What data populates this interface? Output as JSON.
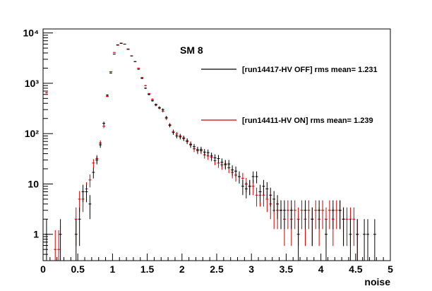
{
  "chart_data": {
    "type": "scatter",
    "title": "SM 8",
    "xlabel": "noise",
    "ylabel": "",
    "xlim": [
      0,
      5
    ],
    "ylim": [
      0.3,
      12000
    ],
    "y_scale": "log",
    "grid": false,
    "legend_position": "top-right",
    "x_ticks": [
      "0",
      "0.5",
      "1",
      "1.5",
      "2",
      "2.5",
      "3",
      "3.5",
      "4",
      "4.5",
      "5"
    ],
    "y_ticks": [
      {
        "value": 1,
        "label": "1"
      },
      {
        "value": 10,
        "label": "10"
      },
      {
        "value": 100,
        "label": "10²"
      },
      {
        "value": 1000,
        "label": "10³"
      },
      {
        "value": 10000,
        "label": "10⁴"
      }
    ],
    "bin_width": 0.05,
    "series": [
      {
        "name": "[run14417-HV OFF] rms mean= 1.231",
        "color": "#000000",
        "x": [
          0.05,
          0.25,
          0.475,
          0.525,
          0.575,
          0.625,
          0.675,
          0.725,
          0.775,
          0.825,
          0.875,
          0.925,
          0.975,
          1.025,
          1.075,
          1.125,
          1.175,
          1.225,
          1.275,
          1.325,
          1.375,
          1.425,
          1.475,
          1.525,
          1.575,
          1.625,
          1.675,
          1.725,
          1.775,
          1.825,
          1.875,
          1.925,
          1.975,
          2.025,
          2.075,
          2.125,
          2.175,
          2.225,
          2.275,
          2.325,
          2.375,
          2.425,
          2.475,
          2.525,
          2.575,
          2.625,
          2.675,
          2.725,
          2.775,
          2.825,
          2.875,
          2.925,
          2.975,
          3.025,
          3.075,
          3.125,
          3.175,
          3.225,
          3.275,
          3.325,
          3.375,
          3.425,
          3.475,
          3.575,
          3.675,
          3.775,
          3.875,
          3.975,
          4.075,
          4.175,
          4.275,
          4.325,
          4.425,
          4.525,
          4.625,
          4.675,
          4.775
        ],
        "y": [
          1,
          1,
          1,
          2,
          7,
          7,
          4,
          17,
          30,
          60,
          160,
          580,
          1600,
          3800,
          5800,
          6200,
          6000,
          4800,
          3500,
          2700,
          1900,
          1250,
          800,
          600,
          450,
          370,
          330,
          300,
          210,
          145,
          105,
          90,
          86,
          82,
          72,
          60,
          55,
          48,
          48,
          43,
          42,
          36,
          33,
          32,
          27,
          25,
          25,
          19,
          18,
          14,
          9,
          8,
          9,
          14,
          14,
          7,
          9,
          8,
          6,
          5,
          4,
          3,
          3,
          3,
          1,
          3,
          2,
          3,
          1,
          3,
          3,
          2,
          1,
          1,
          1,
          1,
          1
        ]
      },
      {
        "name": "[run14411-HV  ON] rms mean= 1.239",
        "color": "#d00000",
        "x": [
          0.05,
          0.175,
          0.225,
          0.475,
          0.525,
          0.575,
          0.625,
          0.675,
          0.725,
          0.775,
          0.825,
          0.875,
          0.925,
          0.975,
          1.025,
          1.075,
          1.125,
          1.175,
          1.225,
          1.275,
          1.325,
          1.375,
          1.425,
          1.475,
          1.525,
          1.575,
          1.625,
          1.675,
          1.725,
          1.775,
          1.825,
          1.875,
          1.925,
          1.975,
          2.025,
          2.075,
          2.125,
          2.175,
          2.225,
          2.275,
          2.325,
          2.375,
          2.425,
          2.475,
          2.525,
          2.575,
          2.625,
          2.675,
          2.725,
          2.775,
          2.825,
          2.875,
          2.925,
          2.975,
          3.025,
          3.075,
          3.125,
          3.175,
          3.225,
          3.275,
          3.325,
          3.375,
          3.425,
          3.475,
          3.525,
          3.575,
          3.625,
          3.675,
          3.725,
          3.775,
          3.825,
          3.875,
          3.925,
          3.975,
          4.025,
          4.075,
          4.125,
          4.175,
          4.225,
          4.275,
          4.325,
          4.375,
          4.425,
          4.475,
          4.525
        ],
        "y": [
          650,
          0.5,
          0.5,
          2,
          5,
          5,
          8,
          12,
          26,
          32,
          65,
          140,
          550,
          1700,
          4100,
          5700,
          6300,
          6000,
          4700,
          3500,
          2700,
          2000,
          1300,
          900,
          620,
          480,
          380,
          320,
          280,
          200,
          150,
          110,
          98,
          90,
          80,
          70,
          62,
          50,
          46,
          46,
          38,
          36,
          34,
          29,
          26,
          24,
          24,
          21,
          17,
          15,
          14,
          13,
          10,
          9,
          9,
          6,
          6,
          6,
          5,
          4,
          3,
          3,
          3,
          2,
          3,
          2,
          3,
          2,
          3,
          2,
          3,
          2,
          3,
          2,
          3,
          2,
          3,
          2,
          3,
          3,
          2,
          2,
          2,
          2,
          1
        ]
      }
    ]
  }
}
